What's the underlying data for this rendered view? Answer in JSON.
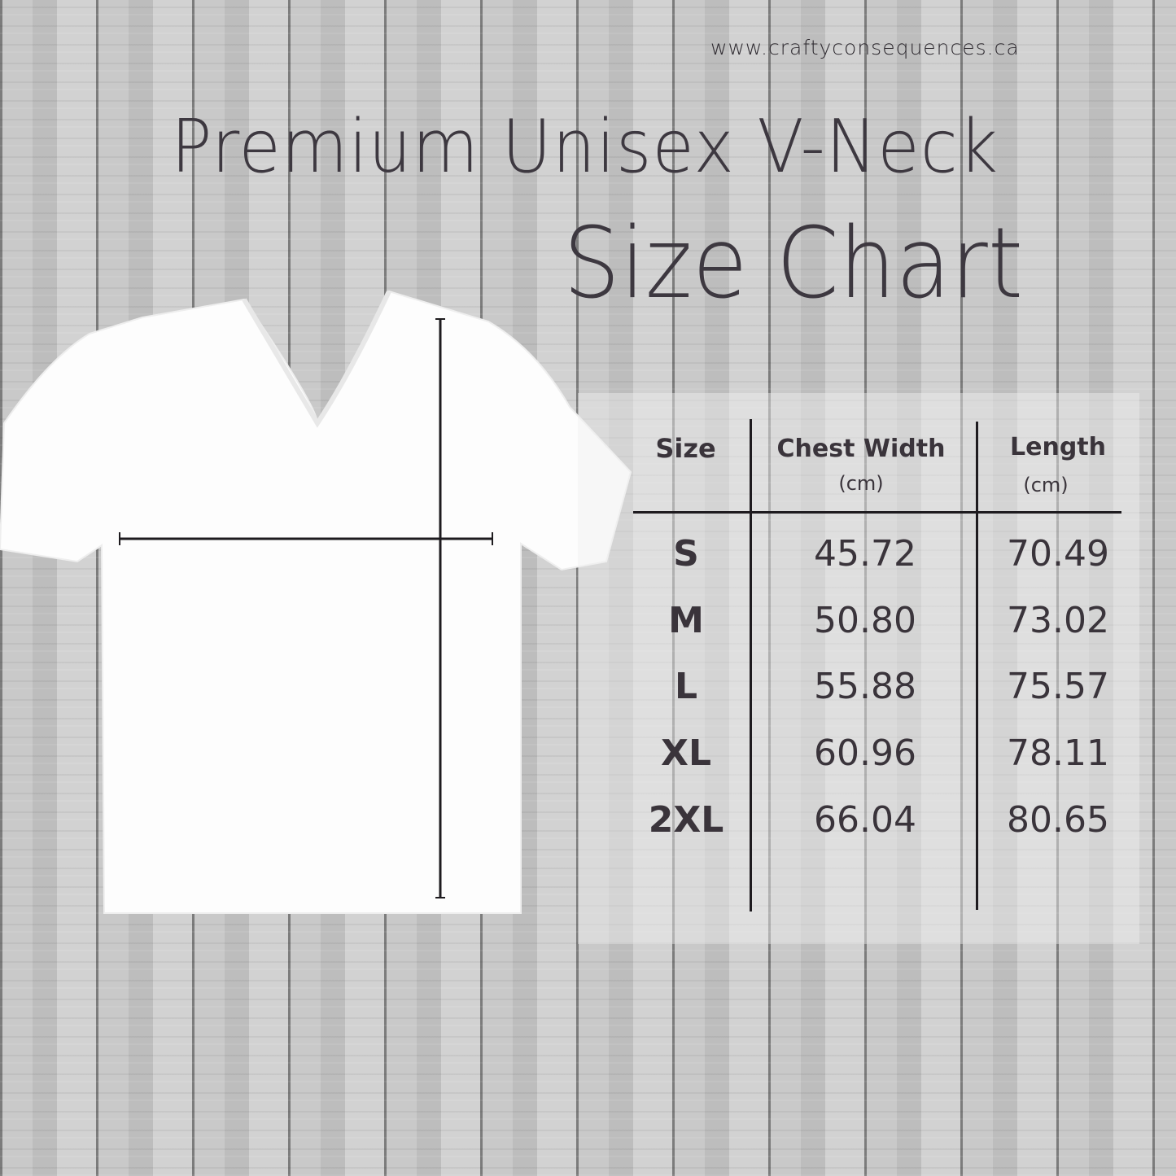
{
  "website": "www.craftyconsequences.ca",
  "title": "Premium Unisex V-Neck",
  "subtitle": "Size Chart",
  "table": {
    "headers": [
      {
        "label": "Size",
        "unit": ""
      },
      {
        "label": "Chest Width",
        "unit": "(cm)"
      },
      {
        "label": "Length",
        "unit": "(cm)"
      }
    ],
    "rows": [
      [
        "S",
        "45.72",
        "70.49"
      ],
      [
        "M",
        "50.80",
        "73.02"
      ],
      [
        "L",
        "55.88",
        "75.57"
      ],
      [
        "XL",
        "60.96",
        "78.11"
      ],
      [
        "2XL",
        "66.04",
        "80.65"
      ]
    ]
  },
  "colors": {
    "text": "#3a343b",
    "shirt": "#ffffff",
    "background": "#c4c4c4"
  }
}
